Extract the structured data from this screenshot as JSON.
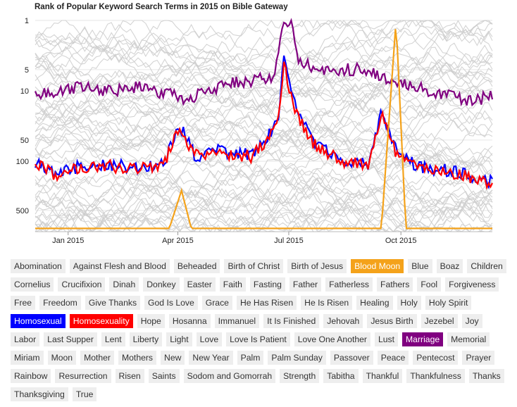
{
  "chart_data": {
    "type": "line",
    "title": "Rank of Popular Keyword Search Terms in 2015 on Bible Gateway",
    "y_scale": "log",
    "y_reversed": true,
    "ylim": [
      1,
      1000
    ],
    "yticks": [
      1,
      5,
      10,
      50,
      100,
      500
    ],
    "xlim": [
      "2014-12-05",
      "2015-12-15"
    ],
    "xticks": [
      {
        "date": "2015-01-01",
        "label": "Jan 2015"
      },
      {
        "date": "2015-04-01",
        "label": "Apr 2015"
      },
      {
        "date": "2015-07-01",
        "label": "Jul 2015"
      },
      {
        "date": "2015-10-01",
        "label": "Oct 2015"
      }
    ],
    "background_series_color": "#cccccc",
    "highlighted_series": [
      {
        "name": "Marriage",
        "color": "#800080",
        "points": [
          [
            "2014-12-05",
            12
          ],
          [
            "2014-12-20",
            10
          ],
          [
            "2015-01-10",
            9
          ],
          [
            "2015-02-01",
            10
          ],
          [
            "2015-03-01",
            9
          ],
          [
            "2015-03-25",
            11
          ],
          [
            "2015-04-08",
            13
          ],
          [
            "2015-05-01",
            9
          ],
          [
            "2015-06-01",
            7
          ],
          [
            "2015-06-20",
            6
          ],
          [
            "2015-06-26",
            1
          ],
          [
            "2015-07-02",
            1
          ],
          [
            "2015-07-10",
            4
          ],
          [
            "2015-08-01",
            5
          ],
          [
            "2015-09-01",
            5
          ],
          [
            "2015-09-20",
            7
          ],
          [
            "2015-10-10",
            8
          ],
          [
            "2015-11-01",
            11
          ],
          [
            "2015-12-01",
            14
          ],
          [
            "2015-12-15",
            11
          ]
        ]
      },
      {
        "name": "Homosexual",
        "color": "#0000ff",
        "points": [
          [
            "2014-12-05",
            110
          ],
          [
            "2014-12-20",
            145
          ],
          [
            "2015-01-10",
            120
          ],
          [
            "2015-02-01",
            110
          ],
          [
            "2015-03-01",
            125
          ],
          [
            "2015-03-20",
            115
          ],
          [
            "2015-04-02",
            30
          ],
          [
            "2015-04-15",
            85
          ],
          [
            "2015-05-01",
            70
          ],
          [
            "2015-06-01",
            80
          ],
          [
            "2015-06-22",
            28
          ],
          [
            "2015-06-27",
            3
          ],
          [
            "2015-07-05",
            15
          ],
          [
            "2015-07-20",
            50
          ],
          [
            "2015-08-15",
            100
          ],
          [
            "2015-09-05",
            110
          ],
          [
            "2015-09-15",
            18
          ],
          [
            "2015-09-28",
            80
          ],
          [
            "2015-10-15",
            120
          ],
          [
            "2015-11-15",
            140
          ],
          [
            "2015-12-15",
            200
          ]
        ]
      },
      {
        "name": "Homosexuality",
        "color": "#ff0000",
        "points": [
          [
            "2014-12-05",
            105
          ],
          [
            "2014-12-20",
            155
          ],
          [
            "2015-01-10",
            125
          ],
          [
            "2015-02-01",
            115
          ],
          [
            "2015-03-01",
            130
          ],
          [
            "2015-03-20",
            120
          ],
          [
            "2015-04-02",
            35
          ],
          [
            "2015-04-15",
            80
          ],
          [
            "2015-05-01",
            75
          ],
          [
            "2015-06-01",
            85
          ],
          [
            "2015-06-22",
            32
          ],
          [
            "2015-06-27",
            4
          ],
          [
            "2015-07-05",
            18
          ],
          [
            "2015-07-20",
            55
          ],
          [
            "2015-08-15",
            105
          ],
          [
            "2015-09-05",
            115
          ],
          [
            "2015-09-15",
            22
          ],
          [
            "2015-09-28",
            85
          ],
          [
            "2015-10-15",
            125
          ],
          [
            "2015-11-15",
            150
          ],
          [
            "2015-12-15",
            220
          ]
        ]
      },
      {
        "name": "Blood Moon",
        "color": "#f4a21a",
        "points": [
          [
            "2014-12-05",
            900
          ],
          [
            "2015-03-25",
            900
          ],
          [
            "2015-04-04",
            260
          ],
          [
            "2015-04-12",
            900
          ],
          [
            "2015-09-15",
            900
          ],
          [
            "2015-09-27",
            1
          ],
          [
            "2015-10-05",
            900
          ],
          [
            "2015-12-15",
            900
          ]
        ]
      }
    ]
  },
  "tags": [
    {
      "label": "Abomination"
    },
    {
      "label": "Against Flesh and Blood"
    },
    {
      "label": "Beheaded"
    },
    {
      "label": "Birth of Christ"
    },
    {
      "label": "Birth of Jesus"
    },
    {
      "label": "Blood Moon",
      "color": "#f4a21a"
    },
    {
      "label": "Blue"
    },
    {
      "label": "Boaz"
    },
    {
      "label": "Children"
    },
    {
      "label": "Cornelius"
    },
    {
      "label": "Crucifixion"
    },
    {
      "label": "Dinah"
    },
    {
      "label": "Donkey"
    },
    {
      "label": "Easter"
    },
    {
      "label": "Faith"
    },
    {
      "label": "Fasting"
    },
    {
      "label": "Father"
    },
    {
      "label": "Fatherless"
    },
    {
      "label": "Fathers"
    },
    {
      "label": "Fool"
    },
    {
      "label": "Forgiveness"
    },
    {
      "label": "Free"
    },
    {
      "label": "Freedom"
    },
    {
      "label": "Give Thanks"
    },
    {
      "label": "God Is Love"
    },
    {
      "label": "Grace"
    },
    {
      "label": "He Has Risen"
    },
    {
      "label": "He Is Risen"
    },
    {
      "label": "Healing"
    },
    {
      "label": "Holy"
    },
    {
      "label": "Holy Spirit"
    },
    {
      "label": "Homosexual",
      "color": "#0000ff"
    },
    {
      "label": "Homosexuality",
      "color": "#ff0000"
    },
    {
      "label": "Hope"
    },
    {
      "label": "Hosanna"
    },
    {
      "label": "Immanuel"
    },
    {
      "label": "It Is Finished"
    },
    {
      "label": "Jehovah"
    },
    {
      "label": "Jesus Birth"
    },
    {
      "label": "Jezebel"
    },
    {
      "label": "Joy"
    },
    {
      "label": "Labor"
    },
    {
      "label": "Last Supper"
    },
    {
      "label": "Lent"
    },
    {
      "label": "Liberty"
    },
    {
      "label": "Light"
    },
    {
      "label": "Love"
    },
    {
      "label": "Love Is Patient"
    },
    {
      "label": "Love One Another"
    },
    {
      "label": "Lust"
    },
    {
      "label": "Marriage",
      "color": "#800080"
    },
    {
      "label": "Memorial"
    },
    {
      "label": "Miriam"
    },
    {
      "label": "Moon"
    },
    {
      "label": "Mother"
    },
    {
      "label": "Mothers"
    },
    {
      "label": "New"
    },
    {
      "label": "New Year"
    },
    {
      "label": "Palm"
    },
    {
      "label": "Palm Sunday"
    },
    {
      "label": "Passover"
    },
    {
      "label": "Peace"
    },
    {
      "label": "Pentecost"
    },
    {
      "label": "Prayer"
    },
    {
      "label": "Rainbow"
    },
    {
      "label": "Resurrection"
    },
    {
      "label": "Risen"
    },
    {
      "label": "Saints"
    },
    {
      "label": "Sodom and Gomorrah"
    },
    {
      "label": "Strength"
    },
    {
      "label": "Tabitha"
    },
    {
      "label": "Thankful"
    },
    {
      "label": "Thankfulness"
    },
    {
      "label": "Thanks"
    },
    {
      "label": "Thanksgiving"
    },
    {
      "label": "True"
    }
  ]
}
